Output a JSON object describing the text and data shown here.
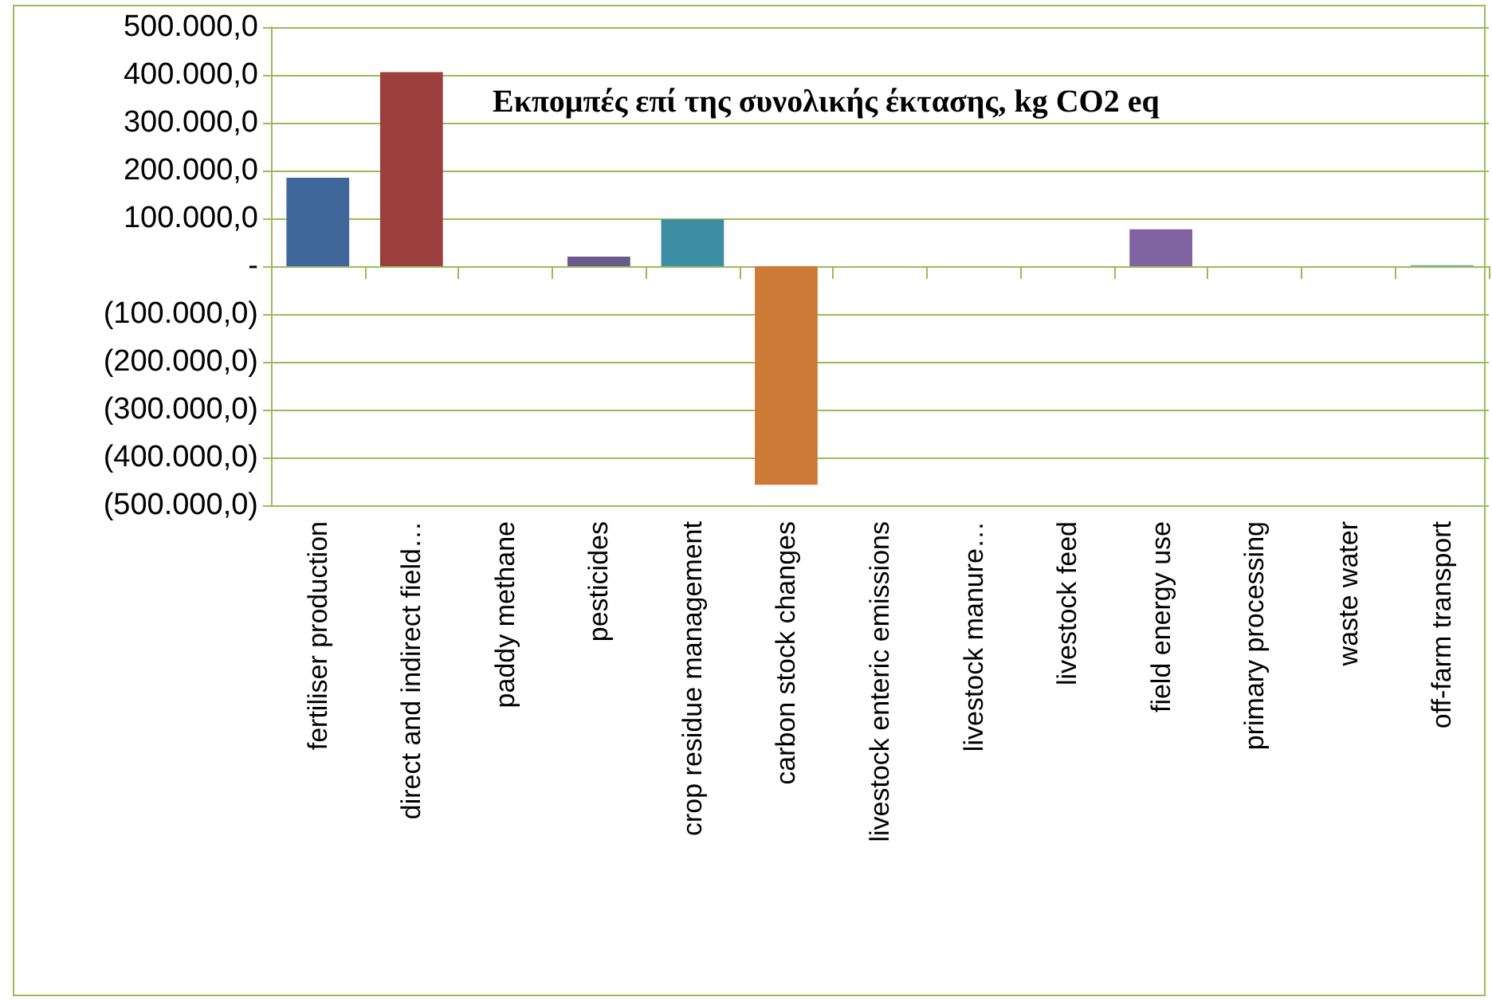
{
  "chart_data": {
    "type": "bar",
    "title": "Εκπομπές επί της συνολικής έκτασης, kg CO2 eq",
    "categories": [
      "fertiliser production",
      "direct and indirect field…",
      "paddy methane",
      "pesticides",
      "crop residue management",
      "carbon stock changes",
      "livestock enteric emissions",
      "livestock manure…",
      "livestock feed",
      "field energy use",
      "primary processing",
      "waste water",
      "off-farm transport"
    ],
    "values": [
      185000,
      406000,
      0,
      20000,
      98000,
      -457000,
      0,
      0,
      0,
      77000,
      0,
      0,
      2000
    ],
    "colors": [
      "#3f679a",
      "#9c3f3c",
      "#9bbb59",
      "#6b5a8e",
      "#3d8ea3",
      "#cc7a36",
      "#2c4d75",
      "#772c2a",
      "#5f7530",
      "#8064a2",
      "#276a7c",
      "#b65708",
      "#729aca"
    ],
    "ylim": [
      -500000,
      500000
    ],
    "yticks": [
      {
        "value": -500000,
        "label": "(500.000,0)"
      },
      {
        "value": -400000,
        "label": "(400.000,0)"
      },
      {
        "value": -300000,
        "label": "(300.000,0)"
      },
      {
        "value": -200000,
        "label": "(200.000,0)"
      },
      {
        "value": -100000,
        "label": "(100.000,0)"
      },
      {
        "value": 0,
        "label": "-"
      },
      {
        "value": 100000,
        "label": "100.000,0"
      },
      {
        "value": 200000,
        "label": "200.000,0"
      },
      {
        "value": 300000,
        "label": "300.000,0"
      },
      {
        "value": 400000,
        "label": "400.000,0"
      },
      {
        "value": 500000,
        "label": "500.000,0"
      }
    ],
    "grid": "y"
  }
}
